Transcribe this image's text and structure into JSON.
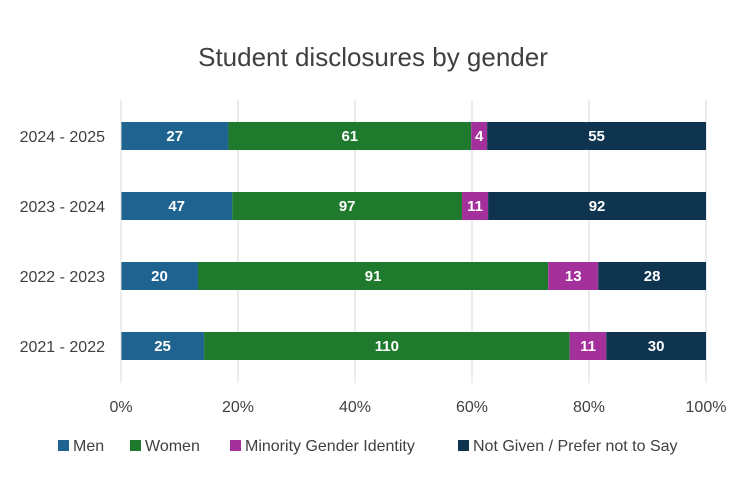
{
  "chart_data": {
    "type": "bar",
    "orientation": "horizontal",
    "stacking": "percent",
    "title": "Student disclosures by gender",
    "categories": [
      "2024 - 2025",
      "2023 - 2024",
      "2022 - 2023",
      "2021 - 2022"
    ],
    "series": [
      {
        "name": "Men",
        "color": "#1f6391",
        "values": [
          27,
          47,
          20,
          25
        ]
      },
      {
        "name": "Women",
        "color": "#1f7a2e",
        "values": [
          61,
          97,
          91,
          110
        ]
      },
      {
        "name": "Minority Gender Identity",
        "color": "#a3309b",
        "values": [
          4,
          11,
          13,
          11
        ]
      },
      {
        "name": "Not Given / Prefer not to Say",
        "color": "#0e3450",
        "values": [
          55,
          92,
          28,
          30
        ]
      }
    ],
    "x_ticks": [
      "0%",
      "20%",
      "40%",
      "60%",
      "80%",
      "100%"
    ],
    "xlim": [
      0,
      100
    ],
    "grid": true,
    "legend_position": "bottom"
  }
}
